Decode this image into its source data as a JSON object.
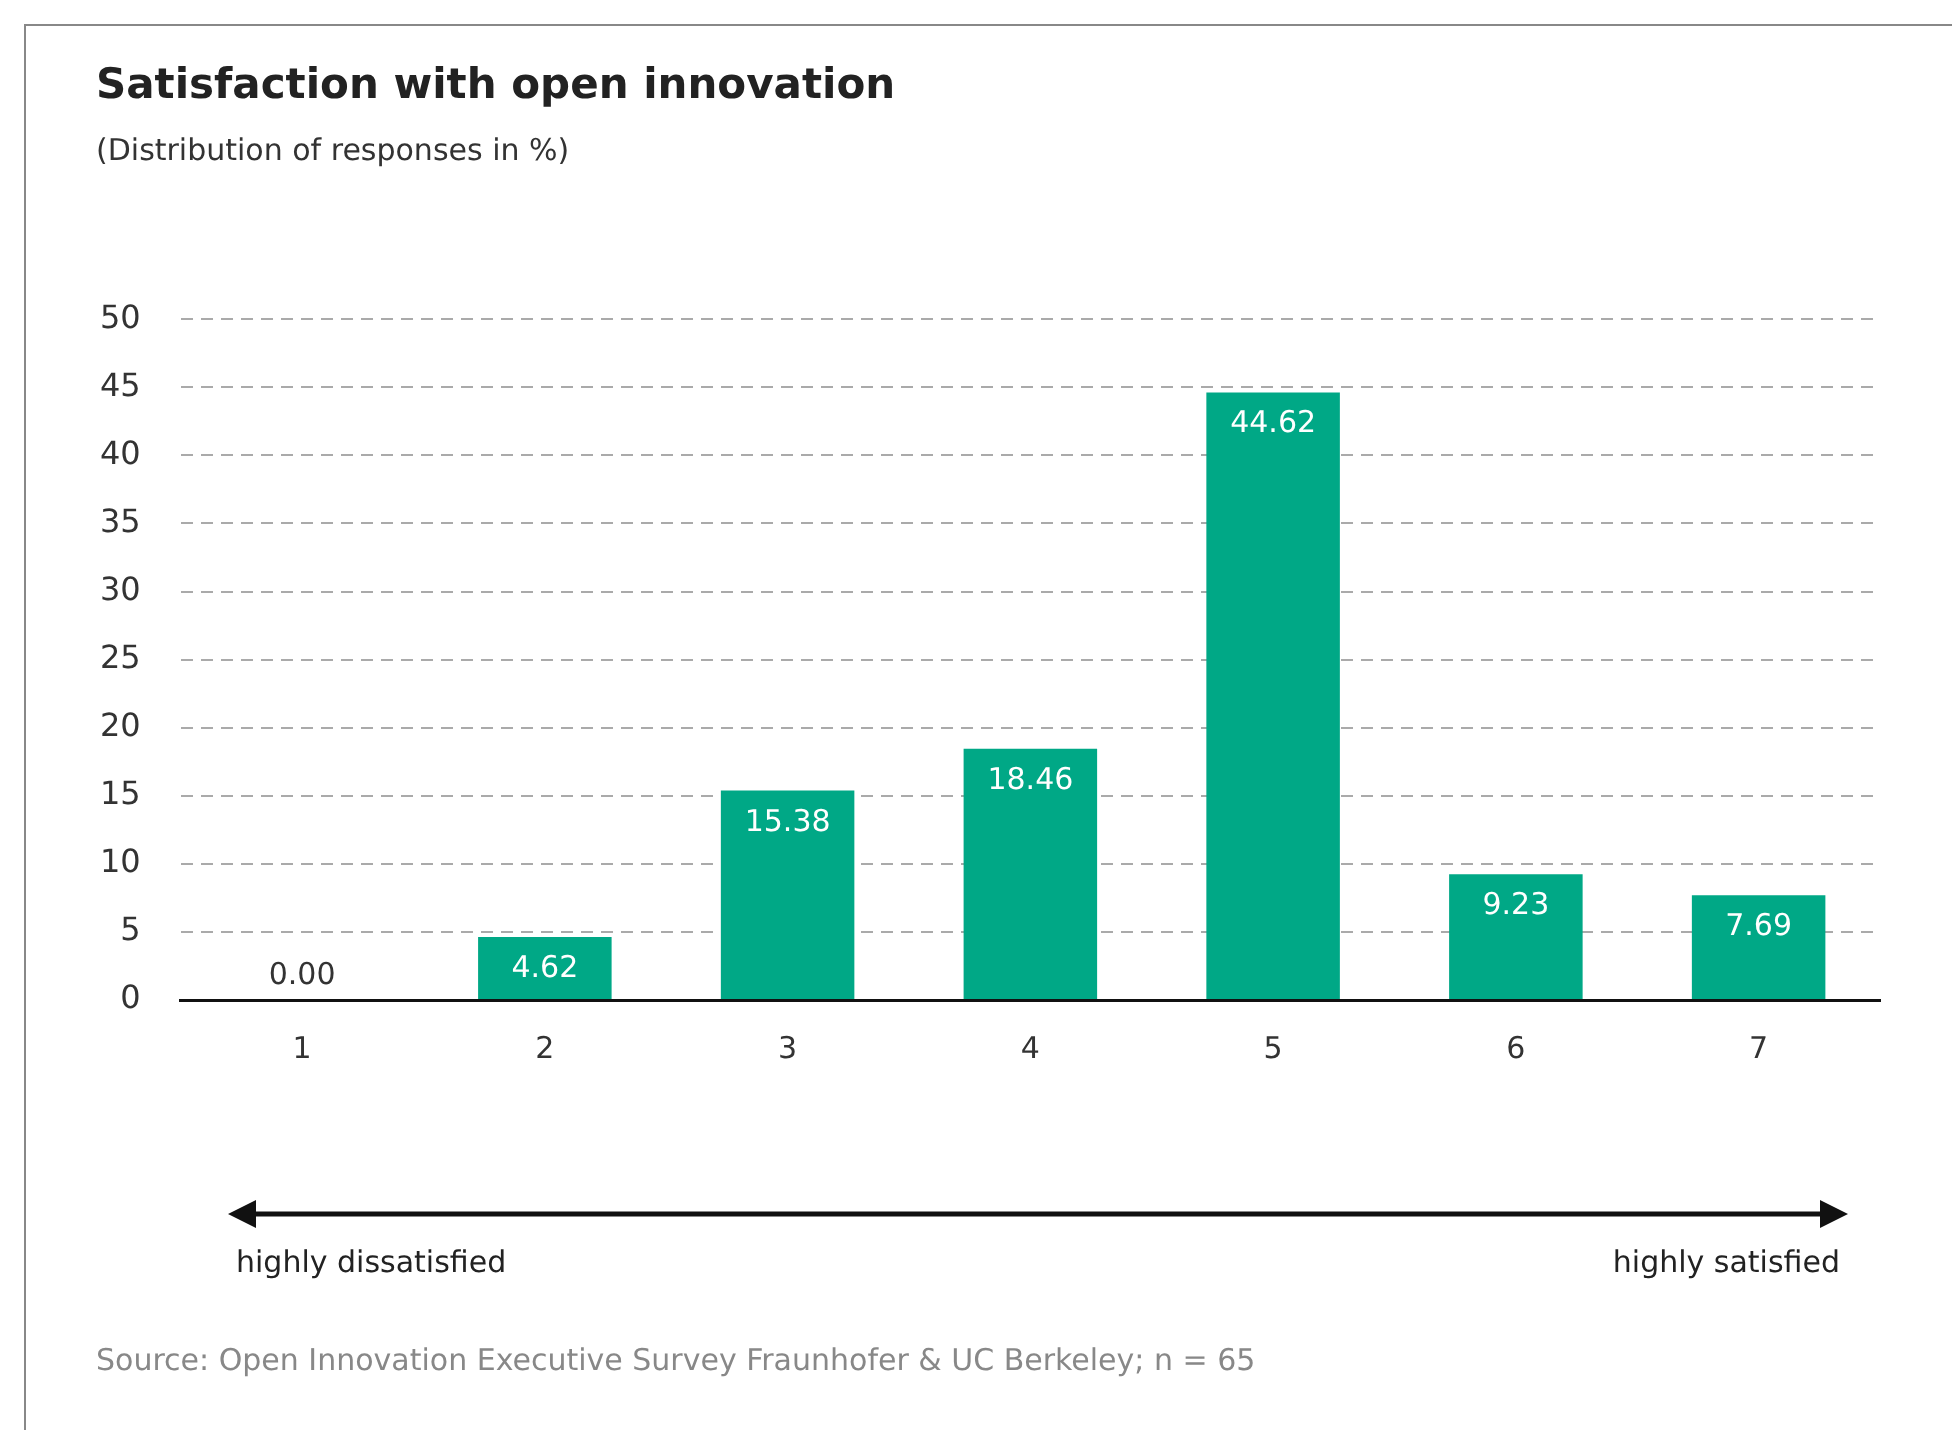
{
  "chart_data": {
    "type": "bar",
    "title": "Satisfaction with open innovation",
    "subtitle": "(Distribution of responses in %)",
    "categories": [
      "1",
      "2",
      "3",
      "4",
      "5",
      "6",
      "7"
    ],
    "values": [
      0.0,
      4.62,
      15.38,
      18.46,
      44.62,
      9.23,
      7.69
    ],
    "color": "#00a886",
    "value_labels": [
      "0.00",
      "4.62",
      "15.38",
      "18.46",
      "44.62",
      "9.23",
      "7.69"
    ],
    "ylim": [
      0,
      50
    ],
    "yticks": [
      0,
      5,
      10,
      15,
      20,
      25,
      30,
      35,
      40,
      45,
      50
    ],
    "grid": "y",
    "legend": false,
    "annotations": [
      "highly dissatisfied",
      "highly satisfied",
      "Source: Open Innovation Executive Survey Fraunhofer & UC Berkeley; n = 65"
    ]
  }
}
